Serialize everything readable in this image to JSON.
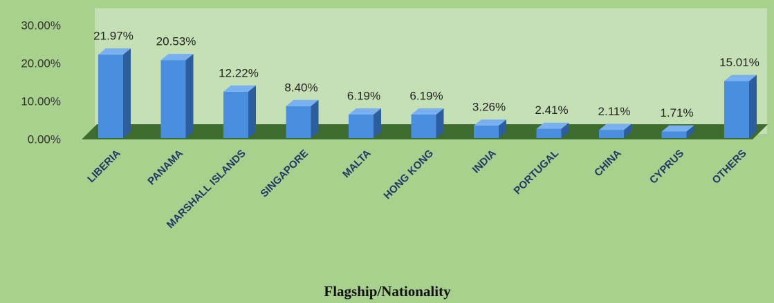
{
  "chart_data": {
    "type": "bar",
    "x_label": "Flagship/Nationality",
    "categories": [
      "LIBERIA",
      "PANAMA",
      "MARSHALL ISLANDS",
      "SINGAPORE",
      "MALTA",
      "HONG KONG",
      "INDIA",
      "PORTUGAL",
      "CHINA",
      "CYPRUS",
      "OTHERS"
    ],
    "values": [
      21.97,
      20.53,
      12.22,
      8.4,
      6.19,
      6.19,
      3.26,
      2.41,
      2.11,
      1.71,
      15.01
    ],
    "value_labels": [
      "21.97%",
      "20.53%",
      "12.22%",
      "8.40%",
      "6.19%",
      "6.19%",
      "3.26%",
      "2.41%",
      "2.11%",
      "1.71%",
      "15.01%"
    ],
    "color": "#4a8fdf",
    "ylim": [
      0,
      30
    ],
    "yticks": [
      {
        "value": 0,
        "label": "0.00%"
      },
      {
        "value": 10,
        "label": "10.00%"
      },
      {
        "value": 20,
        "label": "20.00%"
      },
      {
        "value": 30,
        "label": "30.00%"
      }
    ],
    "grid": false
  }
}
